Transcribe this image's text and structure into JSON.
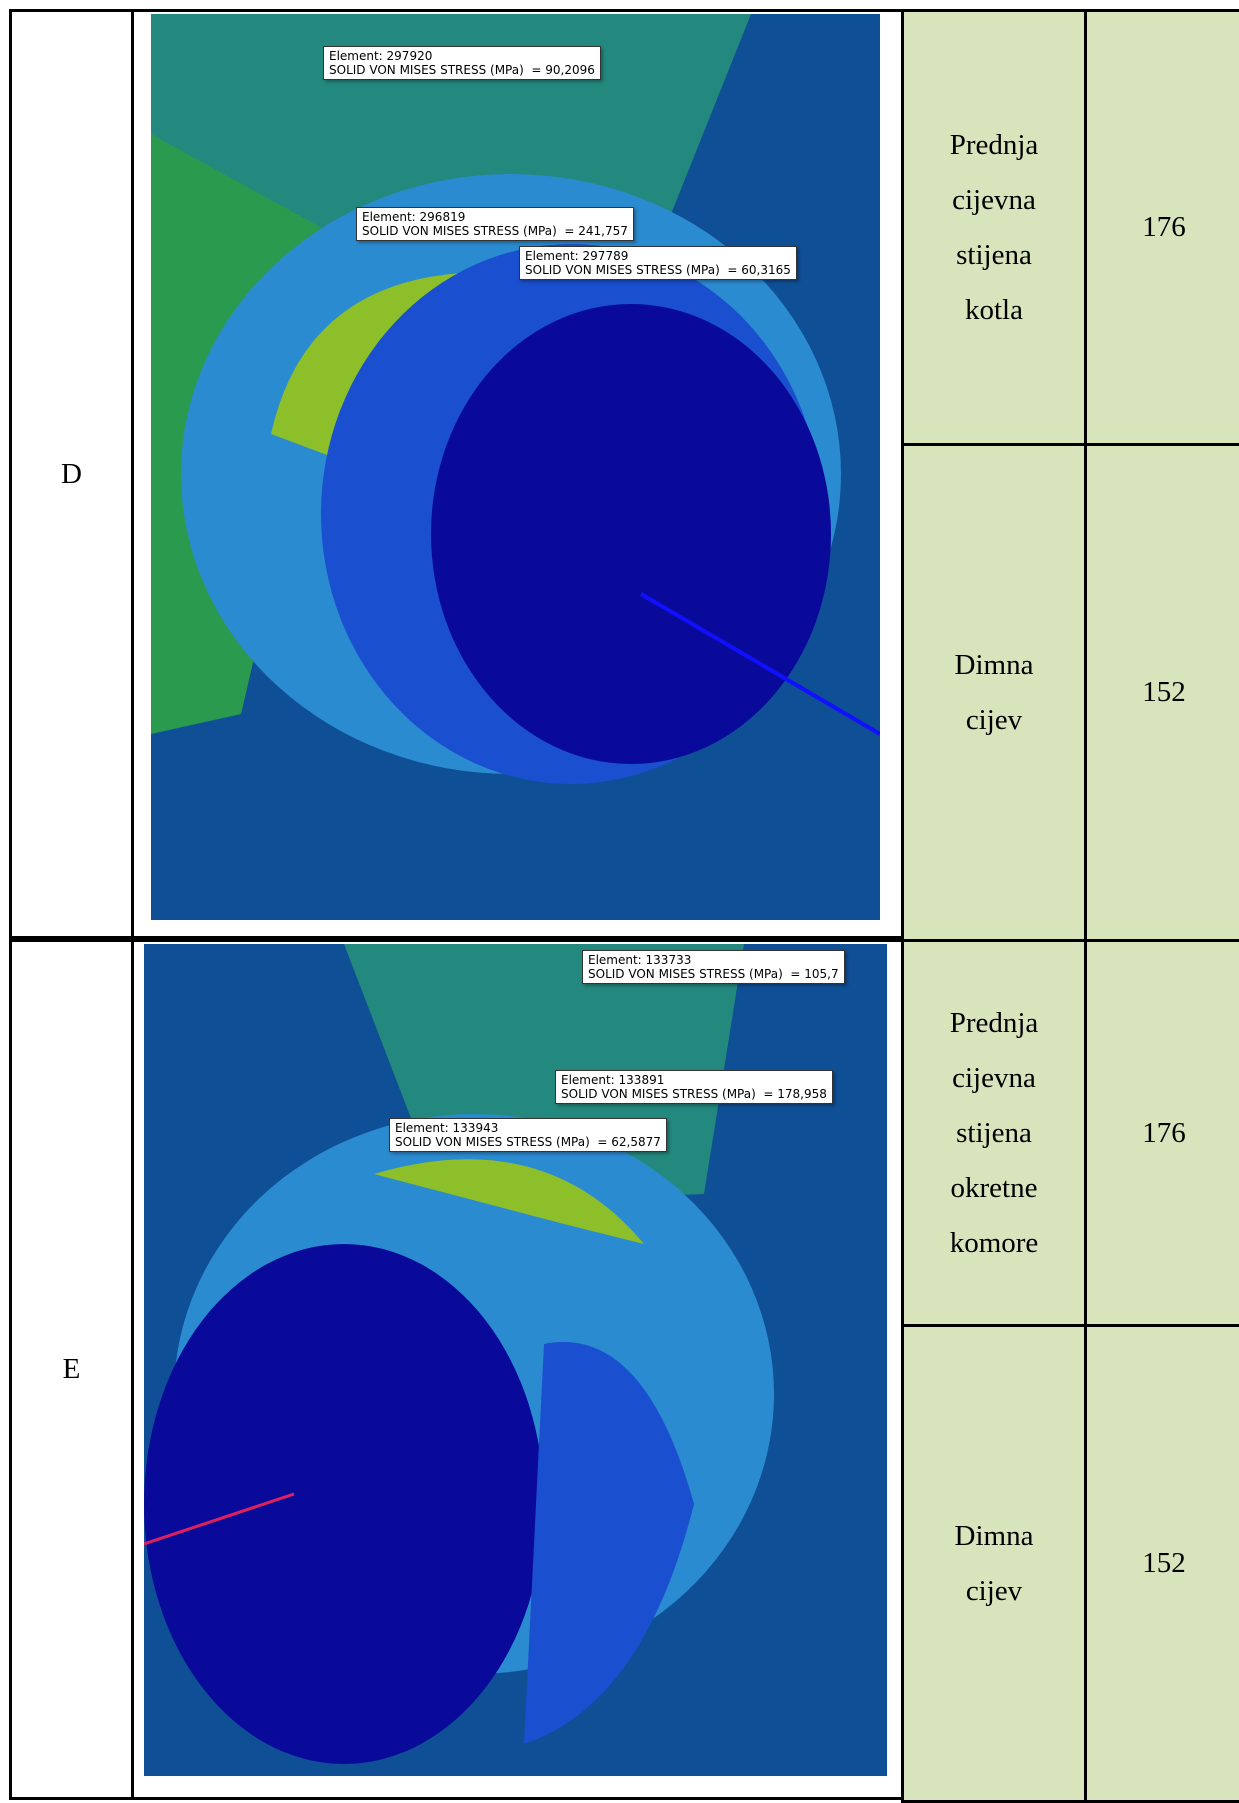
{
  "rows": [
    {
      "label": "D",
      "callouts": [
        {
          "element": "Element: 297920",
          "stress": "SOLID VON MISES STRESS (MPa)  = 90,2096"
        },
        {
          "element": "Element: 296819",
          "stress": "SOLID VON MISES STRESS (MPa)  = 241,757"
        },
        {
          "element": "Element: 297789",
          "stress": "SOLID VON MISES STRESS (MPa)  = 60,3165"
        }
      ],
      "parts": [
        {
          "name": "Prednja cijevna stijena kotla",
          "value": 176
        },
        {
          "name": "Dimna cijev",
          "value": 152
        }
      ]
    },
    {
      "label": "E",
      "callouts": [
        {
          "element": "Element: 133733",
          "stress": "SOLID VON MISES STRESS (MPa)  = 105,7"
        },
        {
          "element": "Element: 133891",
          "stress": "SOLID VON MISES STRESS (MPa)  = 178,958"
        },
        {
          "element": "Element: 133943",
          "stress": "SOLID VON MISES STRESS (MPa)  = 62,5877"
        }
      ],
      "parts": [
        {
          "name": "Prednja cijevna stijena okretne komore",
          "value": 176
        },
        {
          "name": "Dimna cijev",
          "value": 152
        }
      ]
    }
  ]
}
